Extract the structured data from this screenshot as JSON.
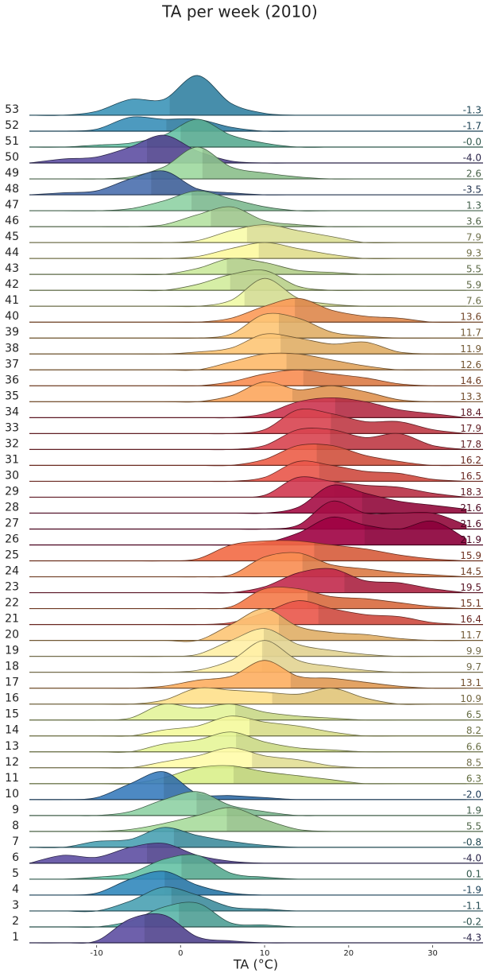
{
  "chart_data": {
    "type": "ridgeline",
    "title": "TA per week (2010)",
    "xlabel": "TA (°C)",
    "xlim": [
      -18,
      36
    ],
    "xticks": [
      -10,
      0,
      10,
      20,
      30
    ],
    "x": [
      -18,
      -14,
      -10,
      -6,
      -2,
      2,
      6,
      10,
      14,
      18,
      22,
      26,
      30,
      34
    ],
    "series": [
      {
        "name": "1",
        "color": "#5e4fa2",
        "mean": -4.3,
        "values": [
          0,
          0,
          1,
          12,
          14,
          3,
          1,
          0,
          0,
          0,
          0,
          0,
          0,
          0
        ]
      },
      {
        "name": "2",
        "color": "#5bb5a9",
        "mean": -0.2,
        "values": [
          0,
          0,
          0,
          3,
          10,
          12,
          2,
          1,
          0,
          0,
          0,
          0,
          0,
          0
        ]
      },
      {
        "name": "3",
        "color": "#4aa1b3",
        "mean": -1.1,
        "values": [
          0,
          0,
          0,
          5,
          12,
          8,
          2,
          1,
          0,
          0,
          0,
          0,
          0,
          0
        ]
      },
      {
        "name": "4",
        "color": "#3288bd",
        "mean": -1.9,
        "values": [
          0,
          0,
          1,
          8,
          12,
          5,
          1,
          0,
          0,
          0,
          0,
          0,
          0,
          0
        ]
      },
      {
        "name": "5",
        "color": "#66c2a5",
        "mean": 0.1,
        "values": [
          0,
          0,
          1,
          3,
          10,
          12,
          3,
          1,
          0,
          0,
          0,
          0,
          0,
          0
        ]
      },
      {
        "name": "6",
        "color": "#5e4fa2",
        "mean": -4.0,
        "mean_label": "-4.0",
        "values": [
          0,
          4,
          3,
          8,
          10,
          4,
          1,
          0,
          0,
          0,
          0,
          0,
          0,
          0
        ]
      },
      {
        "name": "7",
        "color": "#4aa1b3",
        "mean": -0.8,
        "values": [
          0,
          0,
          3,
          4,
          10,
          6,
          3,
          1,
          0,
          0,
          0,
          0,
          0,
          0
        ]
      },
      {
        "name": "8",
        "color": "#a8dc9c",
        "mean": 5.5,
        "values": [
          0,
          0,
          0,
          1,
          4,
          8,
          12,
          6,
          1,
          0,
          0,
          0,
          0,
          0
        ]
      },
      {
        "name": "9",
        "color": "#8fd2a4",
        "mean": 1.9,
        "values": [
          0,
          0,
          0,
          2,
          8,
          12,
          5,
          2,
          0,
          0,
          0,
          0,
          0,
          0
        ]
      },
      {
        "name": "10",
        "color": "#3a7cbd",
        "mean": -2.0,
        "mean_label": "-2.0",
        "values": [
          0,
          0,
          1,
          8,
          14,
          3,
          2,
          1,
          0,
          0,
          0,
          0,
          0,
          0
        ]
      },
      {
        "name": "11",
        "color": "#d9ef8b",
        "mean": 6.3,
        "values": [
          0,
          0,
          0,
          0,
          3,
          8,
          9,
          6,
          4,
          2,
          0,
          0,
          0,
          0
        ]
      },
      {
        "name": "12",
        "color": "#fffcaa",
        "mean": 8.5,
        "values": [
          0,
          0,
          0,
          0,
          3,
          6,
          10,
          6,
          4,
          1,
          0,
          0,
          0,
          0
        ]
      },
      {
        "name": "13",
        "color": "#e6f598",
        "mean": 6.6,
        "values": [
          0,
          0,
          0,
          0,
          4,
          6,
          10,
          5,
          2,
          1,
          0,
          0,
          0,
          0
        ]
      },
      {
        "name": "14",
        "color": "#f4fa9c",
        "mean": 8.2,
        "values": [
          0,
          0,
          0,
          0,
          3,
          5,
          10,
          7,
          5,
          2,
          0,
          0,
          0,
          0
        ]
      },
      {
        "name": "15",
        "color": "#e3f49a",
        "mean": 6.5,
        "values": [
          0,
          0,
          0,
          1,
          8,
          6,
          8,
          4,
          2,
          1,
          0,
          0,
          0,
          0
        ]
      },
      {
        "name": "16",
        "color": "#fee08b",
        "mean": 10.9,
        "values": [
          0,
          0,
          0,
          0,
          2,
          8,
          7,
          6,
          5,
          8,
          3,
          0,
          0,
          0
        ]
      },
      {
        "name": "17",
        "color": "#fdae61",
        "mean": 13.1,
        "values": [
          0,
          0,
          0,
          0,
          1,
          4,
          6,
          14,
          6,
          5,
          3,
          1,
          0,
          0
        ]
      },
      {
        "name": "18",
        "color": "#fff0a6",
        "mean": 9.7,
        "values": [
          0,
          0,
          0,
          0,
          0,
          1,
          6,
          16,
          6,
          3,
          1,
          0,
          0,
          0
        ]
      },
      {
        "name": "19",
        "color": "#fff0a6",
        "mean": 9.9,
        "values": [
          0,
          0,
          0,
          0,
          0,
          1,
          8,
          14,
          6,
          3,
          1,
          0,
          0,
          0
        ]
      },
      {
        "name": "20",
        "color": "#fdc575",
        "mean": 11.7,
        "values": [
          0,
          0,
          0,
          0,
          0,
          0,
          8,
          16,
          7,
          4,
          3,
          1,
          0,
          0
        ]
      },
      {
        "name": "21",
        "color": "#e9574a",
        "mean": 16.4,
        "values": [
          0,
          0,
          0,
          0,
          0,
          0,
          1,
          6,
          12,
          8,
          5,
          4,
          1,
          0
        ]
      },
      {
        "name": "22",
        "color": "#f47a49",
        "mean": 15.1,
        "values": [
          0,
          0,
          0,
          0,
          0,
          0,
          1,
          10,
          10,
          6,
          5,
          3,
          1,
          0
        ]
      },
      {
        "name": "23",
        "color": "#c22a4d",
        "mean": 19.5,
        "values": [
          0,
          0,
          0,
          0,
          0,
          0,
          0,
          3,
          10,
          12,
          6,
          5,
          2,
          0
        ]
      },
      {
        "name": "24",
        "color": "#f88d52",
        "mean": 14.5,
        "values": [
          0,
          0,
          0,
          0,
          0,
          0,
          1,
          10,
          12,
          6,
          4,
          2,
          1,
          0
        ]
      },
      {
        "name": "25",
        "color": "#f26a45",
        "mean": 15.9,
        "values": [
          0,
          0,
          0,
          0,
          0,
          1,
          8,
          10,
          10,
          8,
          6,
          3,
          1,
          0
        ]
      },
      {
        "name": "26",
        "color": "#9e0142",
        "mean": 21.9,
        "values": [
          0,
          0,
          0,
          0,
          0,
          0,
          0,
          1,
          6,
          14,
          10,
          8,
          12,
          3
        ]
      },
      {
        "name": "27",
        "color": "#a50d45",
        "mean": 21.6,
        "values": [
          0,
          0,
          0,
          0,
          0,
          0,
          0,
          0,
          2,
          14,
          8,
          8,
          8,
          2
        ]
      },
      {
        "name": "28",
        "color": "#a50d45",
        "mean": 21.6,
        "values": [
          0,
          0,
          0,
          0,
          0,
          0,
          0,
          0,
          3,
          14,
          10,
          6,
          4,
          2
        ]
      },
      {
        "name": "29",
        "color": "#d03850",
        "mean": 18.3,
        "values": [
          0,
          0,
          0,
          0,
          0,
          0,
          0,
          1,
          10,
          8,
          6,
          5,
          2,
          0
        ]
      },
      {
        "name": "30",
        "color": "#e9574a",
        "mean": 16.5,
        "values": [
          0,
          0,
          0,
          0,
          0,
          0,
          0,
          2,
          10,
          8,
          5,
          4,
          1,
          0
        ]
      },
      {
        "name": "31",
        "color": "#ec5e48",
        "mean": 16.2,
        "values": [
          0,
          0,
          0,
          0,
          0,
          0,
          0,
          3,
          10,
          10,
          5,
          2,
          0,
          0
        ]
      },
      {
        "name": "32",
        "color": "#d84450",
        "mean": 17.8,
        "values": [
          0,
          0,
          0,
          0,
          0,
          0,
          0,
          2,
          10,
          10,
          6,
          8,
          2,
          0
        ]
      },
      {
        "name": "33",
        "color": "#d84450",
        "mean": 17.9,
        "values": [
          0,
          0,
          0,
          0,
          0,
          0,
          0,
          2,
          12,
          10,
          6,
          6,
          2,
          0
        ]
      },
      {
        "name": "34",
        "color": "#cc3550",
        "mean": 18.4,
        "values": [
          0,
          0,
          0,
          0,
          0,
          0,
          0,
          2,
          8,
          10,
          8,
          4,
          2,
          0
        ]
      },
      {
        "name": "35",
        "color": "#fca65d",
        "mean": 13.3,
        "values": [
          0,
          0,
          0,
          0,
          0,
          0,
          3,
          10,
          6,
          8,
          5,
          1,
          0,
          0
        ]
      },
      {
        "name": "36",
        "color": "#f88d52",
        "mean": 14.6,
        "values": [
          0,
          0,
          0,
          0,
          0,
          0,
          2,
          6,
          8,
          6,
          4,
          1,
          0,
          0
        ]
      },
      {
        "name": "37",
        "color": "#fdb96a",
        "mean": 12.6,
        "values": [
          0,
          0,
          0,
          0,
          0,
          0,
          4,
          8,
          8,
          5,
          2,
          0,
          0,
          0
        ]
      },
      {
        "name": "38",
        "color": "#fdc575",
        "mean": 11.9,
        "values": [
          0,
          0,
          0,
          0,
          0,
          1,
          3,
          10,
          8,
          5,
          6,
          1,
          0,
          0
        ]
      },
      {
        "name": "39",
        "color": "#fdc575",
        "mean": 11.7,
        "values": [
          0,
          0,
          0,
          0,
          0,
          0,
          2,
          12,
          10,
          3,
          1,
          0,
          0,
          0
        ]
      },
      {
        "name": "40",
        "color": "#fb9a58",
        "mean": 13.6,
        "values": [
          0,
          0,
          0,
          0,
          0,
          0,
          2,
          8,
          12,
          6,
          3,
          2,
          0,
          0
        ]
      },
      {
        "name": "41",
        "color": "#f0f9a6",
        "mean": 7.6,
        "values": [
          0,
          0,
          0,
          0,
          0,
          0,
          3,
          14,
          4,
          1,
          0,
          0,
          0,
          0
        ]
      },
      {
        "name": "42",
        "color": "#d2ec9c",
        "mean": 5.9,
        "values": [
          0,
          0,
          0,
          0,
          0,
          3,
          8,
          10,
          2,
          0,
          0,
          0,
          0,
          0
        ]
      },
      {
        "name": "43",
        "color": "#cbe99c",
        "mean": 5.5,
        "values": [
          0,
          0,
          0,
          0,
          0,
          3,
          8,
          6,
          2,
          1,
          0,
          0,
          0,
          0
        ]
      },
      {
        "name": "44",
        "color": "#fdf9a0",
        "mean": 9.3,
        "values": [
          0,
          0,
          0,
          0,
          0,
          1,
          5,
          8,
          5,
          2,
          0,
          0,
          0,
          0
        ]
      },
      {
        "name": "45",
        "color": "#f8fcaa",
        "mean": 7.9,
        "values": [
          0,
          0,
          0,
          0,
          0,
          1,
          6,
          9,
          6,
          3,
          0,
          0,
          0,
          0
        ]
      },
      {
        "name": "46",
        "color": "#b5e1a1",
        "mean": 3.6,
        "values": [
          0,
          0,
          0,
          0,
          1,
          6,
          10,
          3,
          1,
          0,
          0,
          0,
          0,
          0
        ]
      },
      {
        "name": "47",
        "color": "#8fd2a4",
        "mean": 1.3,
        "values": [
          0,
          0,
          0,
          1,
          5,
          10,
          6,
          2,
          0,
          0,
          0,
          0,
          0,
          0
        ]
      },
      {
        "name": "48",
        "color": "#4a6fae",
        "mean": -3.5,
        "values": [
          0,
          1,
          2,
          8,
          12,
          3,
          1,
          0,
          0,
          0,
          0,
          0,
          0,
          0
        ]
      },
      {
        "name": "49",
        "color": "#9dd89f",
        "mean": 2.6,
        "values": [
          0,
          0,
          0,
          1,
          6,
          16,
          6,
          3,
          1,
          0,
          0,
          0,
          0,
          0
        ]
      },
      {
        "name": "50",
        "color": "#5e4fa2",
        "mean": -4.0,
        "mean_label": "-4.0",
        "values": [
          0,
          2,
          3,
          8,
          14,
          6,
          1,
          0,
          0,
          0,
          0,
          0,
          0,
          0
        ]
      },
      {
        "name": "51",
        "color": "#66c2a5",
        "mean": 0,
        "mean_label": "-0.0",
        "values": [
          0,
          0,
          1,
          2,
          6,
          14,
          6,
          2,
          0,
          0,
          0,
          0,
          0,
          0
        ]
      },
      {
        "name": "52",
        "color": "#3a8fb8",
        "mean": -1.7,
        "values": [
          0,
          0,
          1,
          7,
          6,
          6,
          2,
          0,
          0,
          0,
          0,
          0,
          0,
          0
        ]
      },
      {
        "name": "53",
        "color": "#3d95b8",
        "mean": -1.3,
        "values": [
          0,
          0,
          2,
          8,
          8,
          20,
          6,
          1,
          0,
          0,
          0,
          0,
          0,
          0
        ]
      }
    ]
  }
}
